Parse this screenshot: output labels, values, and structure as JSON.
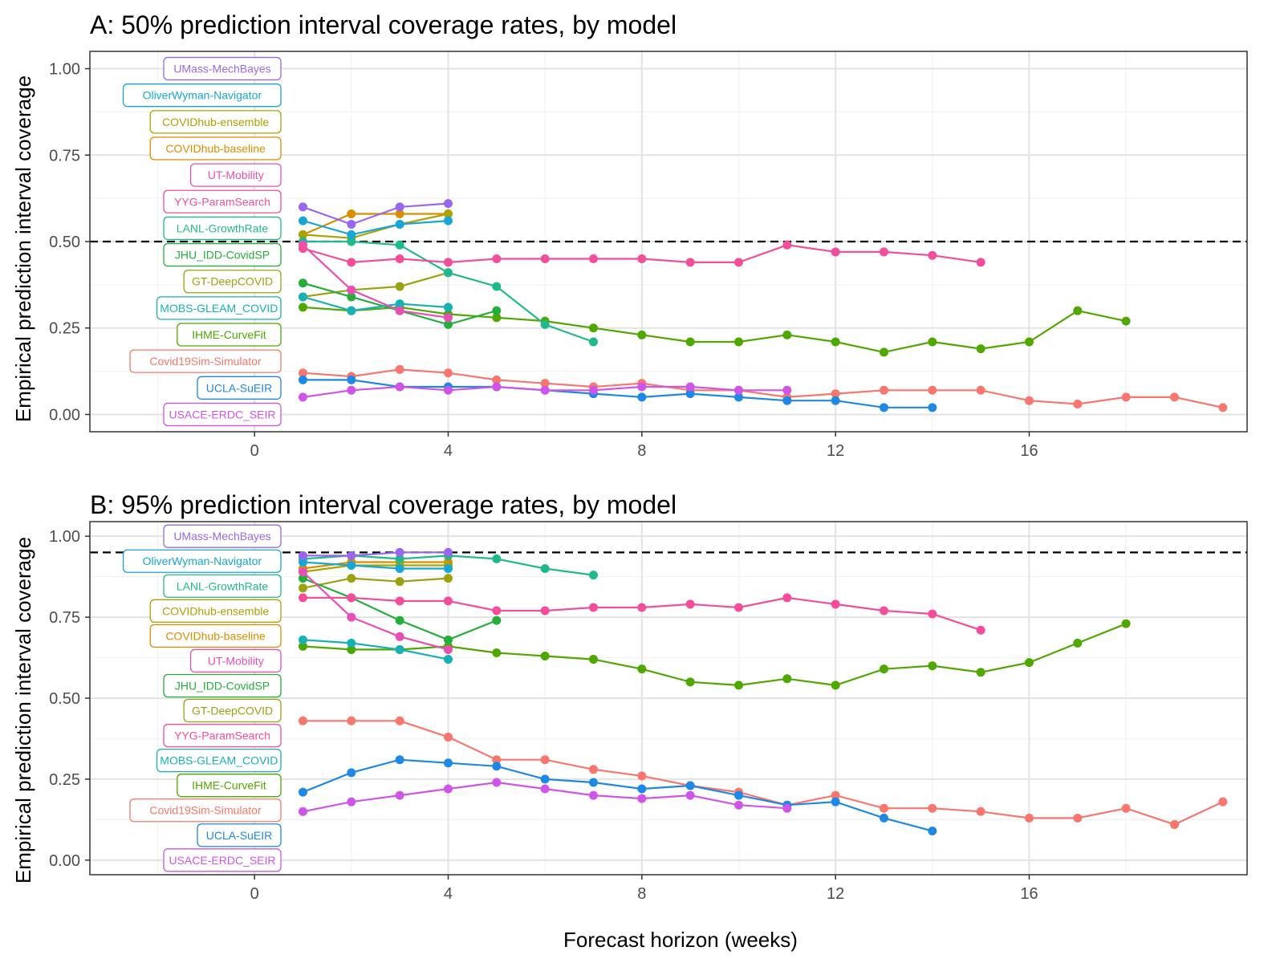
{
  "chart_data": [
    {
      "type": "line",
      "title": "A: 50% prediction interval coverage rates, by model",
      "xlabel": "",
      "ylabel": "Empirical prediction interval coverage",
      "xlim": [
        -3.4,
        20.5
      ],
      "ylim": [
        -0.05,
        1.05
      ],
      "x_ticks": [
        "0",
        "4",
        "8",
        "12",
        "16"
      ],
      "y_ticks": [
        "0.00",
        "0.25",
        "0.50",
        "0.75",
        "1.00"
      ],
      "reference_line": 0.5,
      "grid": true,
      "legend": "labels stacked at left of plot",
      "label_order": [
        "UMass-MechBayes",
        "OliverWyman-Navigator",
        "COVIDhub-ensemble",
        "COVIDhub-baseline",
        "UT-Mobility",
        "YYG-ParamSearch",
        "LANL-GrowthRate",
        "JHU_IDD-CovidSP",
        "GT-DeepCOVID",
        "MOBS-GLEAM_COVID",
        "IHME-CurveFit",
        "Covid19Sim-Simulator",
        "UCLA-SuEIR",
        "USACE-ERDC_SEIR"
      ],
      "series": [
        {
          "name": "Covid19Sim-Simulator",
          "color": "#F8766D",
          "x": [
            1,
            2,
            3,
            4,
            5,
            6,
            7,
            8,
            9,
            10,
            11,
            12,
            13,
            14,
            15,
            16,
            17,
            18,
            19,
            20
          ],
          "values": [
            0.12,
            0.11,
            0.13,
            0.12,
            0.1,
            0.09,
            0.08,
            0.09,
            0.07,
            0.07,
            0.05,
            0.06,
            0.07,
            0.07,
            0.07,
            0.04,
            0.03,
            0.05,
            0.05,
            0.02
          ]
        },
        {
          "name": "COVIDhub-baseline",
          "color": "#DB8E00",
          "x": [
            1,
            2,
            3,
            4
          ],
          "values": [
            0.52,
            0.58,
            0.58,
            0.58
          ]
        },
        {
          "name": "COVIDhub-ensemble",
          "color": "#AEA200",
          "x": [
            1,
            2,
            3,
            4
          ],
          "values": [
            0.52,
            0.51,
            0.55,
            0.58
          ]
        },
        {
          "name": "GT-DeepCOVID",
          "color": "#9BA20F",
          "x": [
            1,
            2,
            3,
            4
          ],
          "values": [
            0.34,
            0.36,
            0.37,
            0.41
          ]
        },
        {
          "name": "IHME-CurveFit",
          "color": "#4FA700",
          "x": [
            1,
            2,
            3,
            4,
            5,
            6,
            7,
            8,
            9,
            10,
            11,
            12,
            13,
            14,
            15,
            16,
            17,
            18
          ],
          "values": [
            0.31,
            0.3,
            0.31,
            0.29,
            0.28,
            0.27,
            0.25,
            0.23,
            0.21,
            0.21,
            0.23,
            0.21,
            0.18,
            0.21,
            0.19,
            0.21,
            0.3,
            0.27
          ]
        },
        {
          "name": "JHU_IDD-CovidSP",
          "color": "#25AE3C",
          "x": [
            1,
            2,
            3,
            4,
            5
          ],
          "values": [
            0.38,
            0.34,
            0.3,
            0.26,
            0.3
          ]
        },
        {
          "name": "LANL-GrowthRate",
          "color": "#20B98C",
          "x": [
            1,
            2,
            3,
            4,
            5,
            6,
            7
          ],
          "values": [
            0.5,
            0.5,
            0.49,
            0.41,
            0.37,
            0.26,
            0.21
          ]
        },
        {
          "name": "MOBS-GLEAM_COVID",
          "color": "#17B1B5",
          "x": [
            1,
            2,
            3,
            4
          ],
          "values": [
            0.34,
            0.3,
            0.32,
            0.31
          ]
        },
        {
          "name": "OliverWyman-Navigator",
          "color": "#16A7D6",
          "x": [
            1,
            2,
            3,
            4
          ],
          "values": [
            0.56,
            0.52,
            0.55,
            0.56
          ]
        },
        {
          "name": "UCLA-SuEIR",
          "color": "#1E88E5",
          "x": [
            1,
            2,
            3,
            4,
            5,
            6,
            7,
            8,
            9,
            10,
            11,
            12,
            13,
            14
          ],
          "values": [
            0.1,
            0.1,
            0.08,
            0.08,
            0.08,
            0.07,
            0.06,
            0.05,
            0.06,
            0.05,
            0.04,
            0.04,
            0.02,
            0.02
          ]
        },
        {
          "name": "UMass-MechBayes",
          "color": "#9966F0",
          "x": [
            1,
            2,
            3,
            4
          ],
          "values": [
            0.6,
            0.55,
            0.6,
            0.61
          ]
        },
        {
          "name": "USACE-ERDC_SEIR",
          "color": "#CF55E8",
          "x": [
            1,
            2,
            3,
            4,
            5,
            6,
            7,
            8,
            9,
            10,
            11
          ],
          "values": [
            0.05,
            0.07,
            0.08,
            0.07,
            0.08,
            0.07,
            0.07,
            0.08,
            0.08,
            0.07,
            0.07
          ]
        },
        {
          "name": "UT-Mobility",
          "color": "#E84FB5",
          "x": [
            1,
            2,
            3,
            4
          ],
          "values": [
            0.49,
            0.36,
            0.3,
            0.28
          ]
        },
        {
          "name": "YYG-ParamSearch",
          "color": "#F24E9B",
          "x": [
            1,
            2,
            3,
            4,
            5,
            6,
            7,
            8,
            9,
            10,
            11,
            12,
            13,
            14,
            15
          ],
          "values": [
            0.48,
            0.44,
            0.45,
            0.44,
            0.45,
            0.45,
            0.45,
            0.45,
            0.44,
            0.44,
            0.49,
            0.47,
            0.47,
            0.46,
            0.44
          ]
        }
      ]
    },
    {
      "type": "line",
      "title": "B: 95% prediction interval coverage rates, by model",
      "xlabel": "Forecast horizon (weeks)",
      "ylabel": "Empirical prediction interval coverage",
      "xlim": [
        -3.4,
        20.5
      ],
      "ylim": [
        -0.045,
        1.045
      ],
      "x_ticks": [
        "0",
        "4",
        "8",
        "12",
        "16"
      ],
      "y_ticks": [
        "0.00",
        "0.25",
        "0.50",
        "0.75",
        "1.00"
      ],
      "reference_line": 0.95,
      "grid": true,
      "legend": "labels stacked at left of plot",
      "label_order": [
        "UMass-MechBayes",
        "OliverWyman-Navigator",
        "LANL-GrowthRate",
        "COVIDhub-ensemble",
        "COVIDhub-baseline",
        "UT-Mobility",
        "JHU_IDD-CovidSP",
        "GT-DeepCOVID",
        "YYG-ParamSearch",
        "MOBS-GLEAM_COVID",
        "IHME-CurveFit",
        "Covid19Sim-Simulator",
        "UCLA-SuEIR",
        "USACE-ERDC_SEIR"
      ],
      "series": [
        {
          "name": "Covid19Sim-Simulator",
          "color": "#F8766D",
          "x": [
            1,
            2,
            3,
            4,
            5,
            6,
            7,
            8,
            9,
            10,
            11,
            12,
            13,
            14,
            15,
            16,
            17,
            18,
            19,
            20
          ],
          "values": [
            0.43,
            0.43,
            0.43,
            0.38,
            0.31,
            0.31,
            0.28,
            0.26,
            0.23,
            0.21,
            0.17,
            0.2,
            0.16,
            0.16,
            0.15,
            0.13,
            0.13,
            0.16,
            0.11,
            0.18
          ]
        },
        {
          "name": "COVIDhub-baseline",
          "color": "#DB8E00",
          "x": [
            1,
            2,
            3,
            4
          ],
          "values": [
            0.9,
            0.92,
            0.92,
            0.92
          ]
        },
        {
          "name": "COVIDhub-ensemble",
          "color": "#AEA200",
          "x": [
            1,
            2,
            3,
            4
          ],
          "values": [
            0.89,
            0.91,
            0.91,
            0.91
          ]
        },
        {
          "name": "GT-DeepCOVID",
          "color": "#9BA20F",
          "x": [
            1,
            2,
            3,
            4
          ],
          "values": [
            0.84,
            0.87,
            0.86,
            0.87
          ]
        },
        {
          "name": "IHME-CurveFit",
          "color": "#4FA700",
          "x": [
            1,
            2,
            3,
            4,
            5,
            6,
            7,
            8,
            9,
            10,
            11,
            12,
            13,
            14,
            15,
            16,
            17,
            18
          ],
          "values": [
            0.66,
            0.65,
            0.65,
            0.66,
            0.64,
            0.63,
            0.62,
            0.59,
            0.55,
            0.54,
            0.56,
            0.54,
            0.59,
            0.6,
            0.58,
            0.61,
            0.67,
            0.73
          ]
        },
        {
          "name": "JHU_IDD-CovidSP",
          "color": "#25AE3C",
          "x": [
            1,
            2,
            3,
            4,
            5
          ],
          "values": [
            0.87,
            0.81,
            0.74,
            0.68,
            0.74
          ]
        },
        {
          "name": "LANL-GrowthRate",
          "color": "#20B98C",
          "x": [
            1,
            2,
            3,
            4,
            5,
            6,
            7
          ],
          "values": [
            0.93,
            0.94,
            0.93,
            0.94,
            0.93,
            0.9,
            0.88
          ]
        },
        {
          "name": "MOBS-GLEAM_COVID",
          "color": "#17B1B5",
          "x": [
            1,
            2,
            3,
            4
          ],
          "values": [
            0.68,
            0.67,
            0.65,
            0.62
          ]
        },
        {
          "name": "OliverWyman-Navigator",
          "color": "#16A7D6",
          "x": [
            1,
            2,
            3,
            4
          ],
          "values": [
            0.92,
            0.91,
            0.9,
            0.9
          ]
        },
        {
          "name": "UCLA-SuEIR",
          "color": "#1E88E5",
          "x": [
            1,
            2,
            3,
            4,
            5,
            6,
            7,
            8,
            9,
            10,
            11,
            12,
            13,
            14
          ],
          "values": [
            0.21,
            0.27,
            0.31,
            0.3,
            0.29,
            0.25,
            0.24,
            0.22,
            0.23,
            0.2,
            0.17,
            0.18,
            0.13,
            0.09
          ]
        },
        {
          "name": "UMass-MechBayes",
          "color": "#9966F0",
          "x": [
            1,
            2,
            3,
            4
          ],
          "values": [
            0.94,
            0.94,
            0.95,
            0.95
          ]
        },
        {
          "name": "USACE-ERDC_SEIR",
          "color": "#CF55E8",
          "x": [
            1,
            2,
            3,
            4,
            5,
            6,
            7,
            8,
            9,
            10,
            11
          ],
          "values": [
            0.15,
            0.18,
            0.2,
            0.22,
            0.24,
            0.22,
            0.2,
            0.19,
            0.2,
            0.17,
            0.16
          ]
        },
        {
          "name": "UT-Mobility",
          "color": "#E84FB5",
          "x": [
            1,
            2,
            3,
            4
          ],
          "values": [
            0.89,
            0.75,
            0.69,
            0.65
          ]
        },
        {
          "name": "YYG-ParamSearch",
          "color": "#F24E9B",
          "x": [
            1,
            2,
            3,
            4,
            5,
            6,
            7,
            8,
            9,
            10,
            11,
            12,
            13,
            14,
            15
          ],
          "values": [
            0.81,
            0.81,
            0.8,
            0.8,
            0.77,
            0.77,
            0.78,
            0.78,
            0.79,
            0.78,
            0.81,
            0.79,
            0.77,
            0.76,
            0.71
          ]
        }
      ]
    }
  ]
}
